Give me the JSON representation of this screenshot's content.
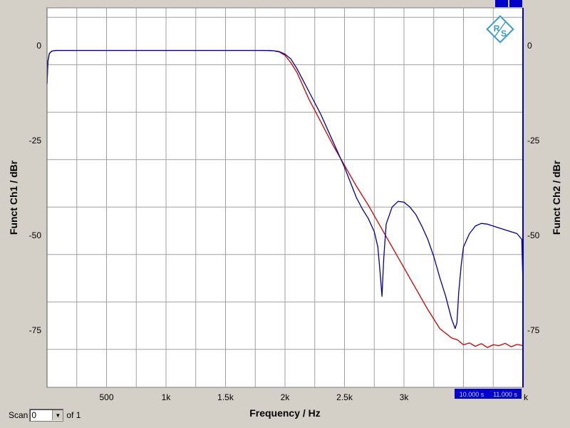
{
  "scan": {
    "label": "Scan",
    "value": "0",
    "of_label": "of 1"
  },
  "markers": [
    "10.000 s",
    "11.000 s"
  ],
  "marker_edge": "k",
  "chart_data": {
    "type": "line",
    "title": "",
    "xlabel": "Frequency / Hz",
    "ylabel_left": "Funct Ch1 / dBr",
    "ylabel_right": "Funct Ch2 / dBr",
    "xlim": [
      0,
      4000
    ],
    "ylim": [
      -90,
      10
    ],
    "xticks": [
      500,
      1000,
      1500,
      2000,
      2500,
      3000
    ],
    "xtick_labels": [
      "500",
      "1k",
      "1.5k",
      "2k",
      "2.5k",
      "3k"
    ],
    "yticks": [
      0,
      -25,
      -50,
      -75
    ],
    "ytick_labels": [
      "0",
      "-25",
      "-50",
      "-75"
    ],
    "grid": true,
    "series": [
      {
        "color": "#cc0000",
        "x": [
          0,
          8,
          20,
          40,
          80,
          150,
          300,
          600,
          1000,
          1500,
          1800,
          1900,
          1950,
          2000,
          2050,
          2100,
          2200,
          2300,
          2400,
          2500,
          2600,
          2700,
          2800,
          2900,
          3000,
          3100,
          3200,
          3300,
          3400,
          3450,
          3500,
          3550,
          3600,
          3650,
          3700,
          3750,
          3800,
          3850,
          3900,
          3950,
          4000
        ],
        "y": [
          -10,
          -4,
          -2,
          -1.4,
          -1.2,
          -1.2,
          -1.2,
          -1.2,
          -1.2,
          -1.2,
          -1.2,
          -1.3,
          -1.6,
          -2.5,
          -4.5,
          -7,
          -14,
          -20,
          -26,
          -31.5,
          -37,
          -42,
          -47.5,
          -53,
          -58.5,
          -64,
          -69.5,
          -74.5,
          -77,
          -77.5,
          -78.8,
          -78.3,
          -79.2,
          -78.5,
          -79.5,
          -78.8,
          -79,
          -78.4,
          -79.3,
          -78.7,
          -79
        ]
      },
      {
        "color": "#000099",
        "x": [
          0,
          8,
          20,
          40,
          80,
          150,
          300,
          600,
          1000,
          1500,
          1800,
          1900,
          1950,
          2000,
          2050,
          2100,
          2200,
          2300,
          2400,
          2500,
          2600,
          2650,
          2700,
          2750,
          2780,
          2800,
          2815,
          2830,
          2850,
          2900,
          2950,
          3000,
          3050,
          3100,
          3150,
          3200,
          3250,
          3300,
          3350,
          3400,
          3430,
          3445,
          3460,
          3480,
          3500,
          3550,
          3600,
          3650,
          3700,
          3750,
          3800,
          3850,
          3900,
          3950,
          3990,
          4000
        ],
        "y": [
          -10,
          -4,
          -2,
          -1.4,
          -1.2,
          -1.2,
          -1.2,
          -1.2,
          -1.2,
          -1.2,
          -1.2,
          -1.3,
          -1.5,
          -2.2,
          -3.5,
          -6,
          -12,
          -18,
          -25,
          -32,
          -40,
          -43,
          -45.5,
          -49,
          -53,
          -60,
          -66,
          -56,
          -47,
          -42.5,
          -41,
          -41.2,
          -42.5,
          -44.5,
          -47.5,
          -51,
          -55.5,
          -61,
          -66,
          -72,
          -74.5,
          -73,
          -65,
          -58,
          -53,
          -49.5,
          -47.5,
          -46.8,
          -47,
          -47.5,
          -48,
          -48.5,
          -49,
          -49.5,
          -51,
          -63
        ]
      }
    ]
  }
}
